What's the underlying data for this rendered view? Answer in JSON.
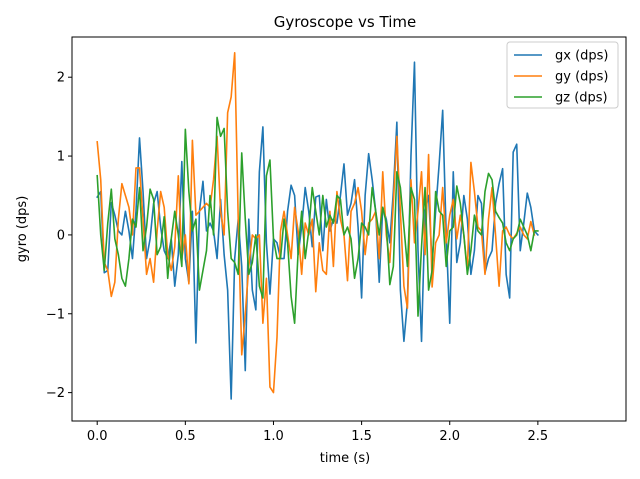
{
  "chart_data": {
    "type": "line",
    "title": "Gyroscope vs Time",
    "xlabel": "time (s)",
    "ylabel": "gyro (dps)",
    "xlim": [
      -0.143,
      3.0
    ],
    "ylim": [
      -2.36,
      2.51
    ],
    "x_ticks": [
      0.0,
      0.5,
      1.0,
      1.5,
      2.0,
      2.5
    ],
    "x_tick_labels": [
      "0.0",
      "0.5",
      "1.0",
      "1.5",
      "2.0",
      "2.5"
    ],
    "y_ticks": [
      -2,
      -1,
      0,
      1,
      2
    ],
    "y_tick_labels": [
      "−2",
      "−1",
      "0",
      "1",
      "2"
    ],
    "grid": false,
    "legend_position": "top-right",
    "x_start": 0.0,
    "x_step": 0.02,
    "series": [
      {
        "name": "gx (dps)",
        "color": "#1f77b4",
        "values": [
          0.48,
          0.55,
          -0.48,
          -0.45,
          0.41,
          0.25,
          0.05,
          0.0,
          0.3,
          0.05,
          -0.3,
          0.3,
          1.23,
          0.55,
          -0.3,
          -0.05,
          0.4,
          0.55,
          0.1,
          -0.2,
          -0.3,
          -0.05,
          -0.65,
          -0.25,
          0.93,
          -0.3,
          -0.6,
          0.3,
          -1.37,
          0.3,
          0.68,
          0.05,
          0.15,
          0.05,
          -0.3,
          0.45,
          -0.25,
          -0.7,
          -2.08,
          -0.3,
          0.2,
          -0.4,
          -1.72,
          0.2,
          -0.7,
          -0.95,
          0.8,
          1.37,
          -0.1,
          -0.75,
          -0.05,
          -0.1,
          -0.3,
          -0.3,
          0.3,
          0.63,
          0.5,
          -0.25,
          0.1,
          0.6,
          0.3,
          -0.15,
          0.48,
          0.5,
          -0.2,
          0.45,
          0.05,
          0.2,
          0.15,
          0.5,
          0.9,
          0.25,
          0.4,
          0.7,
          0.1,
          -0.8,
          0.5,
          1.03,
          0.7,
          0.3,
          -0.6,
          0.35,
          0.2,
          -0.1,
          0.55,
          1.43,
          -0.7,
          -1.35,
          -0.85,
          1.0,
          2.19,
          -0.2,
          -1.35,
          0.3,
          0.5,
          -0.35,
          0.3,
          0.9,
          1.58,
          0.0,
          -1.12,
          0.8,
          -0.35,
          -0.1,
          0.5,
          0.2,
          -0.5,
          -0.2,
          0.5,
          0.4,
          -0.48,
          -0.3,
          -0.2,
          0.4,
          0.65,
          0.84,
          -0.5,
          -0.8,
          1.05,
          1.15,
          -0.2,
          0.15,
          0.53,
          0.35,
          0.05,
          0.0
        ]
      },
      {
        "name": "gy (dps)",
        "color": "#ff7f0e",
        "values": [
          1.18,
          0.7,
          -0.35,
          -0.45,
          -0.78,
          -0.6,
          0.2,
          0.65,
          0.5,
          0.35,
          0.0,
          0.85,
          0.85,
          0.2,
          -0.5,
          -0.3,
          -0.6,
          0.05,
          0.55,
          0.35,
          -0.25,
          -0.45,
          -0.15,
          0.75,
          -0.3,
          0.0,
          -0.62,
          1.2,
          0.25,
          0.3,
          0.35,
          0.4,
          0.35,
          0.7,
          1.25,
          0.3,
          0.0,
          1.55,
          1.75,
          2.31,
          0.2,
          -1.52,
          -1.0,
          -0.4,
          0.0,
          -0.05,
          0.0,
          -1.12,
          -0.55,
          -1.93,
          -2.0,
          -1.3,
          0.05,
          0.3,
          0.0,
          -0.3,
          0.35,
          0.05,
          -0.5,
          0.15,
          0.0,
          0.2,
          -0.72,
          -0.1,
          -0.45,
          -0.5,
          0.3,
          -0.4,
          0.55,
          0.2,
          0.0,
          -0.58,
          0.3,
          0.4,
          0.6,
          0.3,
          -0.25,
          0.15,
          0.2,
          0.3,
          -0.3,
          0.8,
          0.0,
          -0.35,
          0.4,
          1.25,
          0.3,
          -0.65,
          -0.93,
          0.7,
          -0.1,
          0.3,
          0.8,
          -0.25,
          1.02,
          -0.66,
          -0.1,
          0.0,
          0.6,
          -0.1,
          0.25,
          0.45,
          -0.05,
          0.25,
          0.0,
          -0.45,
          0.92,
          0.55,
          0.1,
          0.05,
          -0.5,
          0.2,
          0.6,
          0.0,
          -0.65,
          0.05,
          0.1,
          0.0,
          -0.05,
          0.02,
          0.1,
          0.0,
          -0.05,
          0.17,
          0.0
        ]
      },
      {
        "name": "gz (dps)",
        "color": "#2ca02c",
        "values": [
          0.75,
          0.0,
          -0.45,
          0.15,
          0.58,
          -0.05,
          -0.25,
          -0.55,
          -0.65,
          -0.3,
          0.2,
          0.1,
          0.6,
          -0.2,
          0.1,
          0.58,
          0.45,
          -0.25,
          -0.15,
          0.23,
          -0.55,
          -0.05,
          0.3,
          0.0,
          -0.4,
          1.34,
          0.55,
          0.05,
          0.2,
          -0.7,
          -0.45,
          -0.2,
          0.5,
          0.0,
          1.49,
          1.25,
          1.35,
          0.3,
          -0.3,
          -0.35,
          -0.5,
          1.04,
          0.2,
          -0.5,
          -0.35,
          0.0,
          -0.65,
          -0.8,
          0.75,
          0.95,
          -0.05,
          -0.3,
          -0.3,
          0.2,
          -0.1,
          -0.78,
          -1.12,
          -0.2,
          0.3,
          -0.3,
          0.05,
          0.6,
          0.3,
          0.0,
          0.5,
          0.1,
          0.25,
          0.15,
          0.5,
          0.45,
          0.0,
          0.1,
          -0.05,
          -0.55,
          -0.3,
          0.15,
          0.1,
          0.0,
          0.6,
          0.3,
          0.0,
          0.35,
          0.15,
          -0.63,
          -0.4,
          0.8,
          0.6,
          0.1,
          -0.4,
          0.6,
          0.45,
          -1.03,
          -0.15,
          0.6,
          -0.7,
          -0.45,
          0.55,
          0.3,
          0.25,
          -0.4,
          0.05,
          0.1,
          0.62,
          0.4,
          0.0,
          -0.5,
          -0.2,
          0.25,
          0.05,
          0.0,
          0.55,
          0.78,
          0.7,
          0.3,
          0.22,
          0.15,
          -0.1,
          -0.2,
          -0.05,
          0.0,
          0.2,
          0.1,
          0.0,
          -0.2,
          0.05,
          0.05
        ]
      }
    ]
  }
}
